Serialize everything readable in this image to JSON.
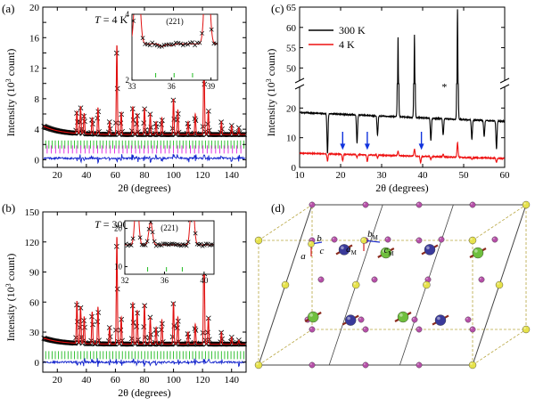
{
  "chart_data": [
    {
      "panel": "(a)",
      "type": "scatter",
      "annotation": "T = 4 K",
      "annotation_parts": {
        "var": "T",
        "eq": " = 4 K"
      },
      "xlabel": "2θ (degrees)",
      "ylabel_parts": {
        "pre": "Intensity (10",
        "sup": "3",
        "post": " count)"
      },
      "xlim": [
        10,
        150
      ],
      "ylim": [
        -1,
        20
      ],
      "xticks": [
        20,
        40,
        60,
        80,
        100,
        120,
        140
      ],
      "yticks": [
        0,
        2,
        4,
        6,
        8,
        10,
        12,
        14,
        16,
        18,
        20
      ],
      "ytick_labels": [
        "0",
        "",
        "4",
        "",
        "8",
        "",
        "12",
        "",
        "16",
        "",
        "20"
      ],
      "background": 3.3,
      "peaks": [
        {
          "x": 33.5,
          "y": 6.2
        },
        {
          "x": 36,
          "y": 6.8
        },
        {
          "x": 38.5,
          "y": 6.0
        },
        {
          "x": 44,
          "y": 5.5
        },
        {
          "x": 48,
          "y": 6.8
        },
        {
          "x": 56,
          "y": 5.0
        },
        {
          "x": 61,
          "y": 15.0
        },
        {
          "x": 64,
          "y": 6.2
        },
        {
          "x": 72,
          "y": 7.0
        },
        {
          "x": 75,
          "y": 6.0
        },
        {
          "x": 80,
          "y": 6.8
        },
        {
          "x": 84,
          "y": 6.0
        },
        {
          "x": 88,
          "y": 5.0
        },
        {
          "x": 92,
          "y": 5.5
        },
        {
          "x": 100,
          "y": 8.0
        },
        {
          "x": 103,
          "y": 6.5
        },
        {
          "x": 110,
          "y": 5.0
        },
        {
          "x": 115,
          "y": 6.0
        },
        {
          "x": 121,
          "y": 14.3
        },
        {
          "x": 124,
          "y": 6.5
        },
        {
          "x": 133,
          "y": 5.0
        },
        {
          "x": 140,
          "y": 4.5
        },
        {
          "x": 145,
          "y": 4.2
        }
      ],
      "tick_rows": [
        {
          "y": 2.0,
          "color": "#22bb22"
        },
        {
          "y": 1.35,
          "color": "#dd22dd"
        }
      ],
      "difference_offset": 0.2,
      "inset": {
        "label": "(221)",
        "xlim": [
          33,
          39.5
        ],
        "ylim": [
          2,
          4
        ],
        "xticks": [
          33,
          36,
          39
        ],
        "yticks": [
          2,
          4
        ],
        "xtick_labels": [
          "33",
          "36",
          "39"
        ],
        "ytick_labels": [
          "2",
          "4"
        ]
      }
    },
    {
      "panel": "(b)",
      "type": "scatter",
      "annotation": "T = 300 K",
      "annotation_parts": {
        "var": "T",
        "eq": " = 300 K"
      },
      "xlabel": "2θ (degrees)",
      "ylabel_parts": {
        "pre": "Intensity (10",
        "sup": "3",
        "post": " count)"
      },
      "xlim": [
        10,
        150
      ],
      "ylim": [
        -10,
        150
      ],
      "xticks": [
        20,
        40,
        60,
        80,
        100,
        120,
        140
      ],
      "yticks": [
        0,
        30,
        60,
        90,
        120,
        150
      ],
      "background": 18,
      "peaks": [
        {
          "x": 33.5,
          "y": 60
        },
        {
          "x": 36,
          "y": 55
        },
        {
          "x": 38.5,
          "y": 45
        },
        {
          "x": 44,
          "y": 50
        },
        {
          "x": 48,
          "y": 55
        },
        {
          "x": 56,
          "y": 35
        },
        {
          "x": 61,
          "y": 125
        },
        {
          "x": 64,
          "y": 45
        },
        {
          "x": 72,
          "y": 60
        },
        {
          "x": 75,
          "y": 52
        },
        {
          "x": 80,
          "y": 58
        },
        {
          "x": 84,
          "y": 45
        },
        {
          "x": 88,
          "y": 35
        },
        {
          "x": 92,
          "y": 42
        },
        {
          "x": 100,
          "y": 60
        },
        {
          "x": 103,
          "y": 45
        },
        {
          "x": 110,
          "y": 30
        },
        {
          "x": 115,
          "y": 38
        },
        {
          "x": 121,
          "y": 135
        },
        {
          "x": 124,
          "y": 45
        },
        {
          "x": 133,
          "y": 30
        },
        {
          "x": 140,
          "y": 25
        },
        {
          "x": 145,
          "y": 22
        }
      ],
      "tick_rows": [
        {
          "y": 7,
          "color": "#22bb22"
        }
      ],
      "difference_offset": 0,
      "inset": {
        "label": "(221)",
        "xlim": [
          32,
          41
        ],
        "ylim": [
          8,
          22
        ],
        "xticks": [
          32,
          36,
          40
        ],
        "yticks": [
          10,
          20
        ],
        "xtick_labels": [
          "32",
          "36",
          "40"
        ],
        "ytick_labels": [
          "10",
          "20"
        ]
      }
    },
    {
      "panel": "(c)",
      "type": "line",
      "xlabel": "2θ (degrees)",
      "ylabel_parts": {
        "pre": "Intensity (10",
        "sup": "3",
        "post": " count)"
      },
      "xlim": [
        10,
        60
      ],
      "ylim": [
        0,
        65
      ],
      "xticks": [
        10,
        20,
        30,
        40,
        50,
        60
      ],
      "yticks": [
        0,
        10,
        20,
        50,
        55,
        60,
        65
      ],
      "axis_break": {
        "from": 27,
        "to": 47
      },
      "series": [
        {
          "name": "300 K",
          "color": "#000000",
          "baseline_start": 18.5,
          "baseline_end": 15.5,
          "peaks": [
            {
              "x": 16.8,
              "y": 2
            },
            {
              "x": 24,
              "y": 6
            },
            {
              "x": 29,
              "y": 9
            },
            {
              "x": 34,
              "y": 56
            },
            {
              "x": 38,
              "y": 57
            },
            {
              "x": 42,
              "y": 8
            },
            {
              "x": 45,
              "y": 10
            },
            {
              "x": 48.5,
              "y": 64
            },
            {
              "x": 52,
              "y": 9
            },
            {
              "x": 55,
              "y": 10
            },
            {
              "x": 58,
              "y": 6
            }
          ]
        },
        {
          "name": "4 K",
          "color": "#ee1111",
          "baseline_start": 4.8,
          "baseline_end": 3.0,
          "peaks": [
            {
              "x": 16.8,
              "y": 0.5
            },
            {
              "x": 20.5,
              "y": 0.7
            },
            {
              "x": 24,
              "y": 2
            },
            {
              "x": 26.5,
              "y": 0.7
            },
            {
              "x": 29,
              "y": 2
            },
            {
              "x": 34,
              "y": 4.5
            },
            {
              "x": 38,
              "y": 5.5
            },
            {
              "x": 39.5,
              "y": 0.8
            },
            {
              "x": 42,
              "y": 2
            },
            {
              "x": 45,
              "y": 4
            },
            {
              "x": 48.5,
              "y": 8
            },
            {
              "x": 52,
              "y": 2.5
            },
            {
              "x": 55,
              "y": 3
            },
            {
              "x": 58,
              "y": 1.5
            }
          ]
        }
      ],
      "arrows": [
        {
          "x": 20.5,
          "color": "#1133dd"
        },
        {
          "x": 26.5,
          "color": "#1133dd"
        },
        {
          "x": 39.7,
          "color": "#1133dd"
        }
      ],
      "asterisk": {
        "x": 45.3
      }
    }
  ],
  "crystal": {
    "panel": "(d)",
    "axis_labels": {
      "a": "a",
      "b": "b",
      "c": "c",
      "aM": "a",
      "aM_sub": "M",
      "bM": "b",
      "bM_sub": "M",
      "cM": "c",
      "cM_sub": "M"
    },
    "colors": {
      "purple": "#b64fa8",
      "yellow": "#e6e24c",
      "green": "#6fbf3e",
      "navy": "#3a3a9a",
      "spin": "#8b2a1d"
    }
  }
}
